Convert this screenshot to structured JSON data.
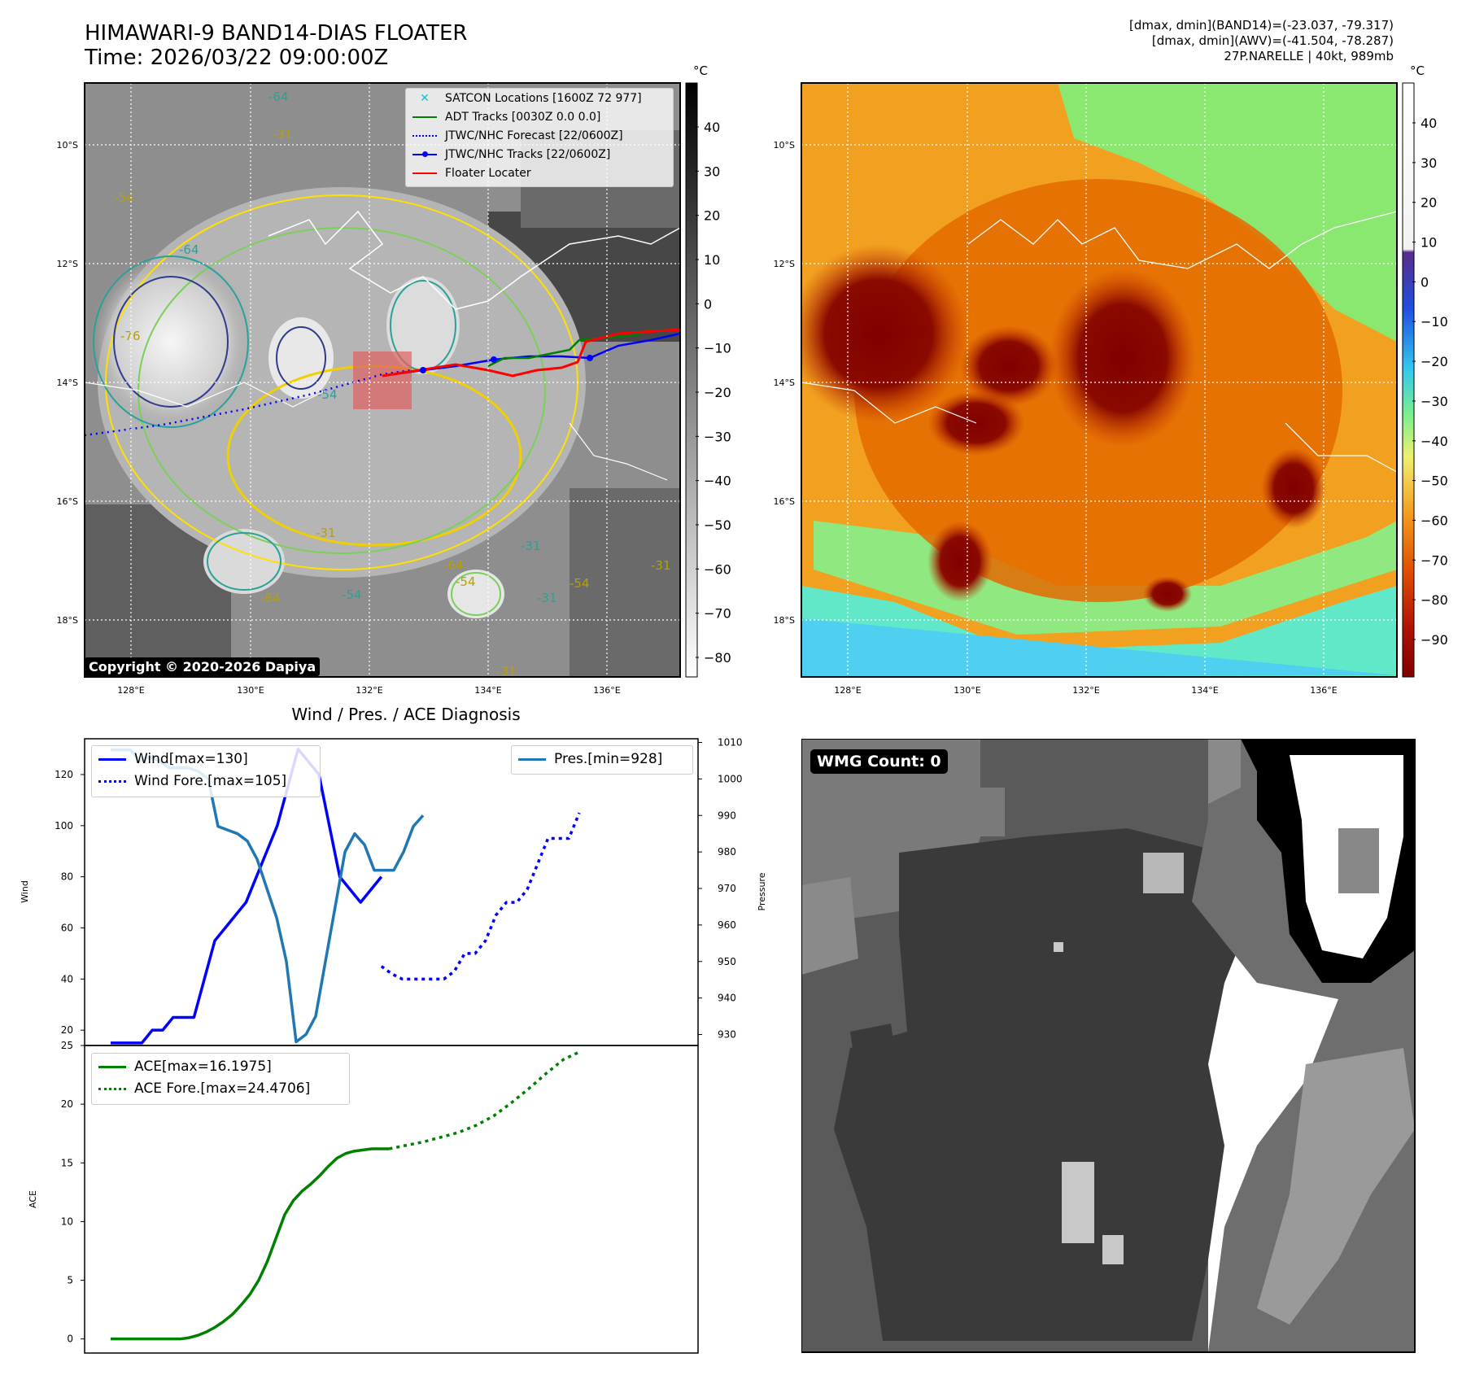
{
  "header": {
    "title_line1": "HIMAWARI-9 BAND14-DIAS FLOATER",
    "title_line2": "Time: 2026/03/22 09:00:00Z",
    "info_line1": "[dmax, dmin](BAND14)=(-23.037, -79.317)",
    "info_line2": "[dmax, dmin](AWV)=(-41.504, -78.287)",
    "info_line3": "27P.NARELLE | 40kt, 989mb"
  },
  "map_axes": {
    "lat_labels": [
      "10°S",
      "12°S",
      "14°S",
      "16°S",
      "18°S"
    ],
    "lon_labels": [
      "128°E",
      "130°E",
      "132°E",
      "134°E",
      "136°E"
    ]
  },
  "ir_panel": {
    "unit": "°C",
    "colorbar_ticks": [
      "40",
      "30",
      "20",
      "10",
      "0",
      "−10",
      "−20",
      "−30",
      "−40",
      "−50",
      "−60",
      "−70",
      "−80"
    ],
    "copyright": "Copyright © 2020-2026 Dapiya",
    "contour_labels": [
      "-64",
      "-31",
      "-54",
      "-64",
      "-76",
      "-31",
      "-31",
      "-54",
      "-64",
      "-31",
      "-54",
      "-31",
      "-54",
      "-64",
      "-31",
      "-54"
    ],
    "legend": [
      {
        "label": "SATCON Locations [1600Z 72 977]",
        "color": "#17becf",
        "style": "x"
      },
      {
        "label": "ADT Tracks [0030Z 0.0 0.0]",
        "color": "#008000",
        "style": "line"
      },
      {
        "label": "JTWC/NHC Forecast [22/0600Z]",
        "color": "#0000ff",
        "style": "dotted"
      },
      {
        "label": "JTWC/NHC Tracks [22/0600Z]",
        "color": "#0000ff",
        "style": "line-marker"
      },
      {
        "label": "Floater Locater",
        "color": "#ff0000",
        "style": "line"
      }
    ]
  },
  "wv_panel": {
    "unit": "°C",
    "colorbar_ticks": [
      "40",
      "30",
      "20",
      "10",
      "0",
      "−10",
      "−20",
      "−30",
      "−40",
      "−50",
      "−60",
      "−70",
      "−80",
      "−90"
    ]
  },
  "diagnosis": {
    "title": "Wind / Pres. / ACE Diagnosis",
    "wind_ylabel": "Wind",
    "pres_ylabel": "Pressure",
    "ace_ylabel": "ACE",
    "legend_wind": "Wind[max=130]",
    "legend_wind_fore": "Wind Fore.[max=105]",
    "legend_pres": "Pres.[min=928]",
    "legend_ace": "ACE[max=16.1975]",
    "legend_ace_fore": "ACE Fore.[max=24.4706]"
  },
  "wmg_panel": {
    "label": "WMG Count: 0"
  },
  "chart_data": [
    {
      "type": "line",
      "title": "Wind / Pres. / ACE Diagnosis",
      "ylabel": "Wind",
      "ylim": [
        14,
        134
      ],
      "yticks": [
        20,
        40,
        60,
        80,
        100,
        120
      ],
      "series": [
        {
          "name": "Wind[max=130]",
          "color": "#0000ff",
          "style": "solid",
          "x": [
            0,
            1,
            2,
            3,
            4,
            5,
            6,
            7,
            8,
            9,
            10,
            11,
            12,
            13,
            14,
            15,
            16,
            17,
            18,
            19,
            20,
            21,
            22,
            23,
            24,
            25,
            26
          ],
          "values": [
            15,
            15,
            15,
            15,
            20,
            20,
            25,
            25,
            25,
            40,
            55,
            60,
            65,
            70,
            80,
            90,
            100,
            115,
            130,
            125,
            120,
            100,
            80,
            75,
            70,
            75,
            80
          ]
        },
        {
          "name": "Wind Fore.[max=105]",
          "color": "#0000ff",
          "style": "dotted",
          "x": [
            26,
            27,
            28,
            29,
            30,
            31,
            32,
            33,
            34,
            35,
            36,
            37,
            38,
            39,
            40,
            41,
            42,
            43,
            44,
            45
          ],
          "values": [
            45,
            42,
            40,
            40,
            40,
            40,
            40,
            43,
            50,
            50,
            55,
            65,
            70,
            70,
            75,
            85,
            95,
            95,
            95,
            105
          ]
        }
      ]
    },
    {
      "type": "line",
      "ylabel": "Pressure",
      "ylim": [
        927,
        1011
      ],
      "yticks": [
        930,
        940,
        950,
        960,
        970,
        980,
        990,
        1000,
        1010
      ],
      "series": [
        {
          "name": "Pres.[min=928]",
          "color": "#1f77b4",
          "style": "solid",
          "x": [
            0,
            1,
            2,
            3,
            4,
            5,
            6,
            7,
            8,
            9,
            10,
            11,
            12,
            13,
            14,
            15,
            16,
            17,
            18,
            19,
            20,
            21,
            22,
            23,
            24,
            25,
            26,
            27,
            28,
            29,
            30,
            31,
            32
          ],
          "values": [
            1008,
            1008,
            1008,
            1005,
            1006,
            1005,
            1003,
            1003,
            1003,
            1002,
            1000,
            987,
            986,
            985,
            983,
            978,
            970,
            962,
            950,
            928,
            930,
            935,
            950,
            965,
            980,
            985,
            982,
            975,
            975,
            975,
            980,
            987,
            990
          ]
        }
      ]
    },
    {
      "type": "line",
      "ylabel": "ACE",
      "ylim": [
        -1.2,
        25
      ],
      "yticks": [
        0,
        5,
        10,
        15,
        20,
        25
      ],
      "series": [
        {
          "name": "ACE[max=16.1975]",
          "color": "#008000",
          "style": "solid",
          "x": [
            0,
            2,
            4,
            6,
            8,
            9,
            10,
            11,
            12,
            13,
            14,
            15,
            16,
            17,
            18,
            19,
            20,
            21,
            22,
            23,
            24,
            25,
            26,
            27,
            28,
            29,
            30,
            31,
            32
          ],
          "values": [
            0,
            0,
            0,
            0,
            0,
            0.1,
            0.3,
            0.6,
            1.0,
            1.5,
            2.1,
            2.9,
            3.8,
            5.0,
            6.6,
            8.6,
            10.6,
            11.8,
            12.6,
            13.2,
            13.9,
            14.7,
            15.4,
            15.8,
            16.0,
            16.1,
            16.2,
            16.2,
            16.2
          ]
        },
        {
          "name": "ACE Fore.[max=24.4706]",
          "color": "#008000",
          "style": "dotted",
          "x": [
            32,
            34,
            36,
            38,
            40,
            42,
            44,
            46,
            48,
            50,
            52,
            54
          ],
          "values": [
            16.2,
            16.5,
            16.8,
            17.2,
            17.6,
            18.2,
            19.0,
            20.1,
            21.3,
            22.6,
            23.8,
            24.5
          ]
        }
      ]
    }
  ]
}
